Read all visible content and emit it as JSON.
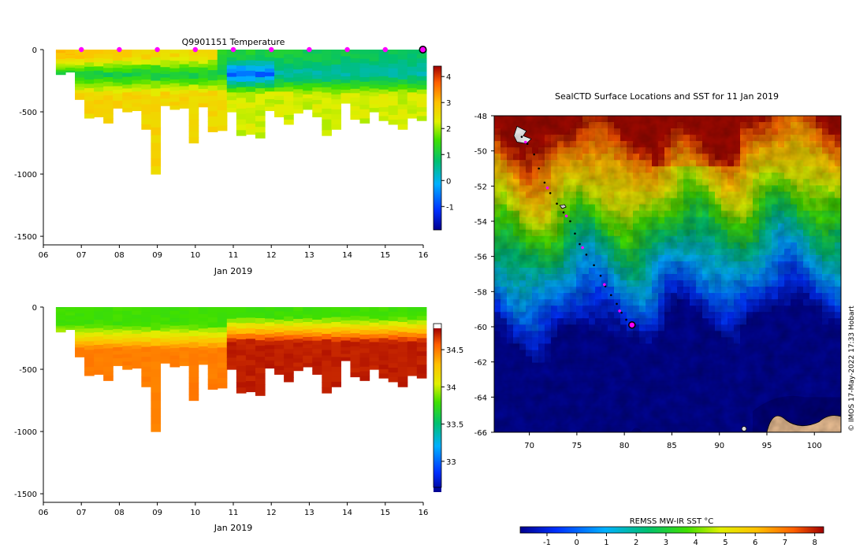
{
  "figure": {
    "watermark": "© IMOS 17-May-2022 17:33 Hobart"
  },
  "chart_data": [
    {
      "id": "temperature-section",
      "type": "heatmap",
      "title": "Q9901151  Temperature",
      "xlabel": "Jan 2019",
      "ylabel": "",
      "xlim": [
        6,
        16
      ],
      "ylim": [
        -1550,
        0
      ],
      "x_ticks": [
        "06",
        "07",
        "08",
        "09",
        "10",
        "11",
        "12",
        "13",
        "14",
        "15",
        "16"
      ],
      "y_ticks": [
        {
          "v": 0,
          "label": "0"
        },
        {
          "v": -500,
          "label": "-500"
        },
        {
          "v": -1000,
          "label": "-1000"
        },
        {
          "v": -1500,
          "label": "-1500"
        }
      ],
      "profile_days": [
        7,
        8,
        9,
        10,
        11,
        12,
        13,
        14,
        15
      ],
      "current_day": 16,
      "colorbar": {
        "min": -1.9,
        "max": 4.4,
        "ticks": [
          {
            "v": 4,
            "label": "4"
          },
          {
            "v": 3,
            "label": "3"
          },
          {
            "v": 2,
            "label": "2"
          },
          {
            "v": 1,
            "label": "1"
          },
          {
            "v": 0,
            "label": "0"
          },
          {
            "v": -1,
            "label": "-1"
          }
        ]
      }
    },
    {
      "id": "salinity-section",
      "type": "heatmap",
      "title": "",
      "xlabel": "Jan 2019",
      "ylabel": "",
      "xlim": [
        6,
        16
      ],
      "ylim": [
        -1550,
        0
      ],
      "x_ticks": [
        "06",
        "07",
        "08",
        "09",
        "10",
        "11",
        "12",
        "13",
        "14",
        "15",
        "16"
      ],
      "y_ticks": [
        {
          "v": 0,
          "label": "0"
        },
        {
          "v": -500,
          "label": "-500"
        },
        {
          "v": -1000,
          "label": "-1000"
        },
        {
          "v": -1500,
          "label": "-1500"
        }
      ],
      "colorbar": {
        "min": 32.65,
        "max": 34.85,
        "ticks": [
          {
            "v": 34.5,
            "label": "34.5"
          },
          {
            "v": 34,
            "label": "34"
          },
          {
            "v": 33.5,
            "label": "33.5"
          },
          {
            "v": 33,
            "label": "33"
          }
        ]
      },
      "profiles": {
        "start_days": [
          6.33,
          6.58,
          6.83,
          7.08,
          7.33,
          7.58,
          7.83,
          8.08,
          8.33,
          8.58,
          8.83,
          9.08,
          9.33,
          9.58,
          9.83,
          10.08,
          10.33,
          10.58,
          10.83,
          11.08,
          11.33,
          11.58,
          11.83,
          12.08,
          12.33,
          12.58,
          12.83,
          13.08,
          13.33,
          13.58,
          13.83,
          14.08,
          14.33,
          14.58,
          14.83,
          15.08,
          15.33,
          15.58,
          15.83
        ],
        "max_depths": [
          200,
          180,
          400,
          550,
          540,
          590,
          470,
          500,
          490,
          640,
          1000,
          450,
          480,
          470,
          750,
          460,
          660,
          650,
          500,
          690,
          680,
          710,
          490,
          540,
          600,
          510,
          480,
          540,
          690,
          640,
          430,
          560,
          590,
          500,
          570,
          600,
          640,
          550,
          570
        ]
      }
    },
    {
      "id": "sst-map",
      "type": "heatmap",
      "title": "SealCTD Surface Locations and SST for 11 Jan 2019",
      "xlim": [
        66.3,
        102.8
      ],
      "ylim": [
        -66,
        -48
      ],
      "x_ticks": [
        {
          "v": 70,
          "label": "70"
        },
        {
          "v": 75,
          "label": "75"
        },
        {
          "v": 80,
          "label": "80"
        },
        {
          "v": 85,
          "label": "85"
        },
        {
          "v": 90,
          "label": "90"
        },
        {
          "v": 95,
          "label": "95"
        },
        {
          "v": 100,
          "label": "100"
        }
      ],
      "y_ticks": [
        {
          "v": -48,
          "label": "-48"
        },
        {
          "v": -50,
          "label": "-50"
        },
        {
          "v": -52,
          "label": "-52"
        },
        {
          "v": -54,
          "label": "-54"
        },
        {
          "v": -56,
          "label": "-56"
        },
        {
          "v": -58,
          "label": "-58"
        },
        {
          "v": -60,
          "label": "-60"
        },
        {
          "v": -62,
          "label": "-62"
        },
        {
          "v": -64,
          "label": "-64"
        },
        {
          "v": -66,
          "label": "-66"
        }
      ],
      "track": [
        [
          69.2,
          -49.2
        ],
        [
          69.8,
          -49.6
        ],
        [
          70.5,
          -50.2
        ],
        [
          71.0,
          -51.0
        ],
        [
          71.6,
          -51.8
        ],
        [
          72.2,
          -52.4
        ],
        [
          72.9,
          -53.0
        ],
        [
          73.6,
          -53.5
        ],
        [
          74.3,
          -54.0
        ],
        [
          74.8,
          -54.7
        ],
        [
          75.3,
          -55.3
        ],
        [
          76.0,
          -55.9
        ],
        [
          76.8,
          -56.5
        ],
        [
          77.5,
          -57.1
        ],
        [
          78.0,
          -57.7
        ],
        [
          78.6,
          -58.2
        ],
        [
          79.2,
          -58.7
        ],
        [
          79.7,
          -59.2
        ],
        [
          80.2,
          -59.6
        ],
        [
          80.8,
          -59.9
        ]
      ],
      "profile_positions": [
        [
          69.6,
          -49.5
        ],
        [
          71.9,
          -52.1
        ],
        [
          73.9,
          -53.7
        ],
        [
          75.6,
          -55.5
        ],
        [
          77.9,
          -57.6
        ],
        [
          79.5,
          -59.1
        ]
      ],
      "current_position": [
        80.8,
        -59.9
      ],
      "colorbar": {
        "label": "REMSS MW-IR SST °C",
        "min": -1.9,
        "max": 8.3,
        "ticks": [
          {
            "v": -1,
            "label": "-1"
          },
          {
            "v": 0,
            "label": "0"
          },
          {
            "v": 1,
            "label": "1"
          },
          {
            "v": 2,
            "label": "2"
          },
          {
            "v": 3,
            "label": "3"
          },
          {
            "v": 4,
            "label": "4"
          },
          {
            "v": 5,
            "label": "5"
          },
          {
            "v": 6,
            "label": "6"
          },
          {
            "v": 7,
            "label": "7"
          },
          {
            "v": 8,
            "label": "8"
          }
        ]
      }
    }
  ]
}
